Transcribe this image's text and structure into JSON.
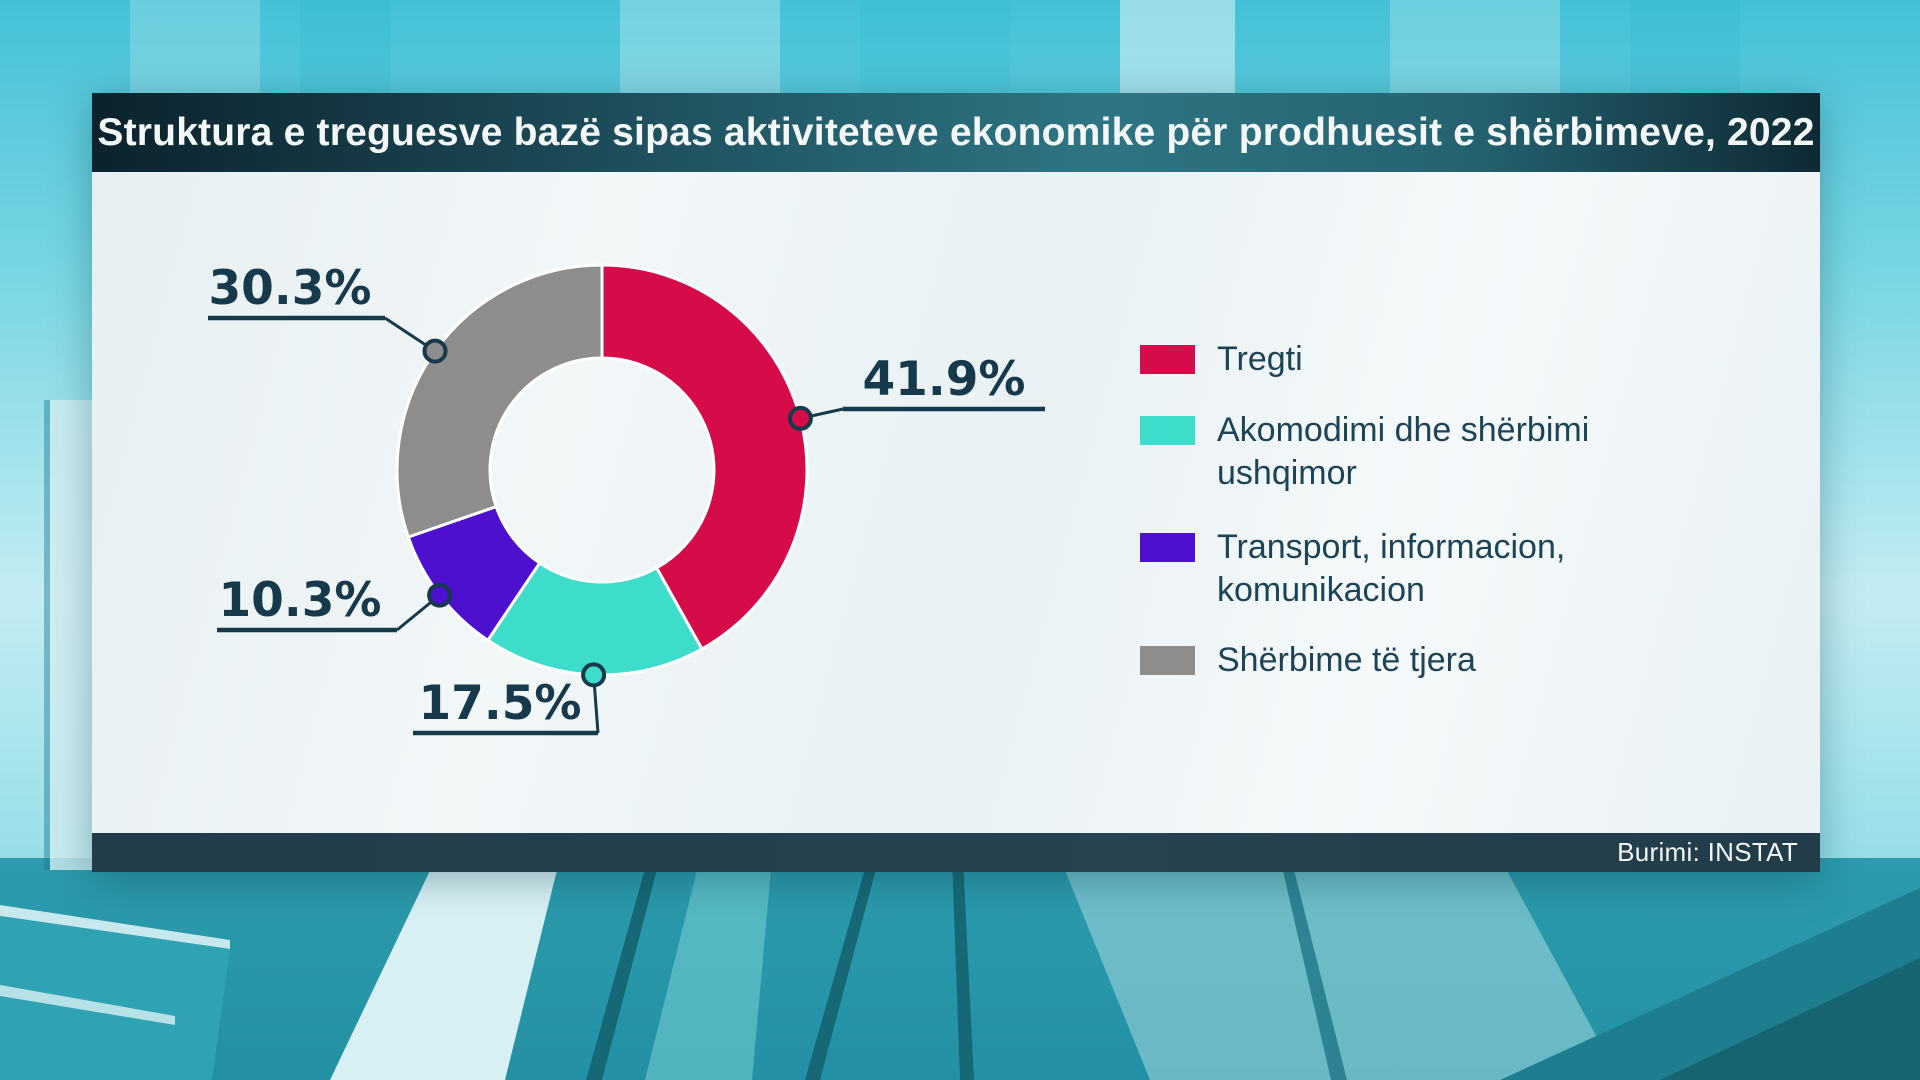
{
  "header": {
    "title": "Struktura e treguesve bazë sipas aktiviteteve ekonomike për prodhuesit e shërbimeve, 2022"
  },
  "footer": {
    "source": "Burimi: INSTAT"
  },
  "chart_data": {
    "type": "pie",
    "subtype": "donut",
    "title": "Struktura e treguesve bazë sipas aktiviteteve ekonomike për prodhuesit e shërbimeve, 2022",
    "source": "Burimi: INSTAT",
    "unit": "%",
    "direction": "clockwise",
    "start_angle_deg": 0,
    "legend_position": "right",
    "categories": [
      "Tregti",
      "Akomodimi dhe shërbimi ushqimor",
      "Transport, informacion, komunikacion",
      "Shërbime të tjera"
    ],
    "values": [
      41.9,
      17.5,
      10.3,
      30.3
    ],
    "labels": [
      "41.9%",
      "17.5%",
      "10.3%",
      "30.3%"
    ],
    "colors": [
      "#d60b4a",
      "#3edccb",
      "#4c10ce",
      "#8d8d8d"
    ],
    "legend_lines": [
      [
        "Tregti"
      ],
      [
        "Akomodimi dhe shërbimi",
        "ushqimor"
      ],
      [
        "Transport, informacion,",
        "komunikacion"
      ],
      [
        "Shërbime të tjera"
      ]
    ],
    "label_text_color": "#16394b"
  }
}
